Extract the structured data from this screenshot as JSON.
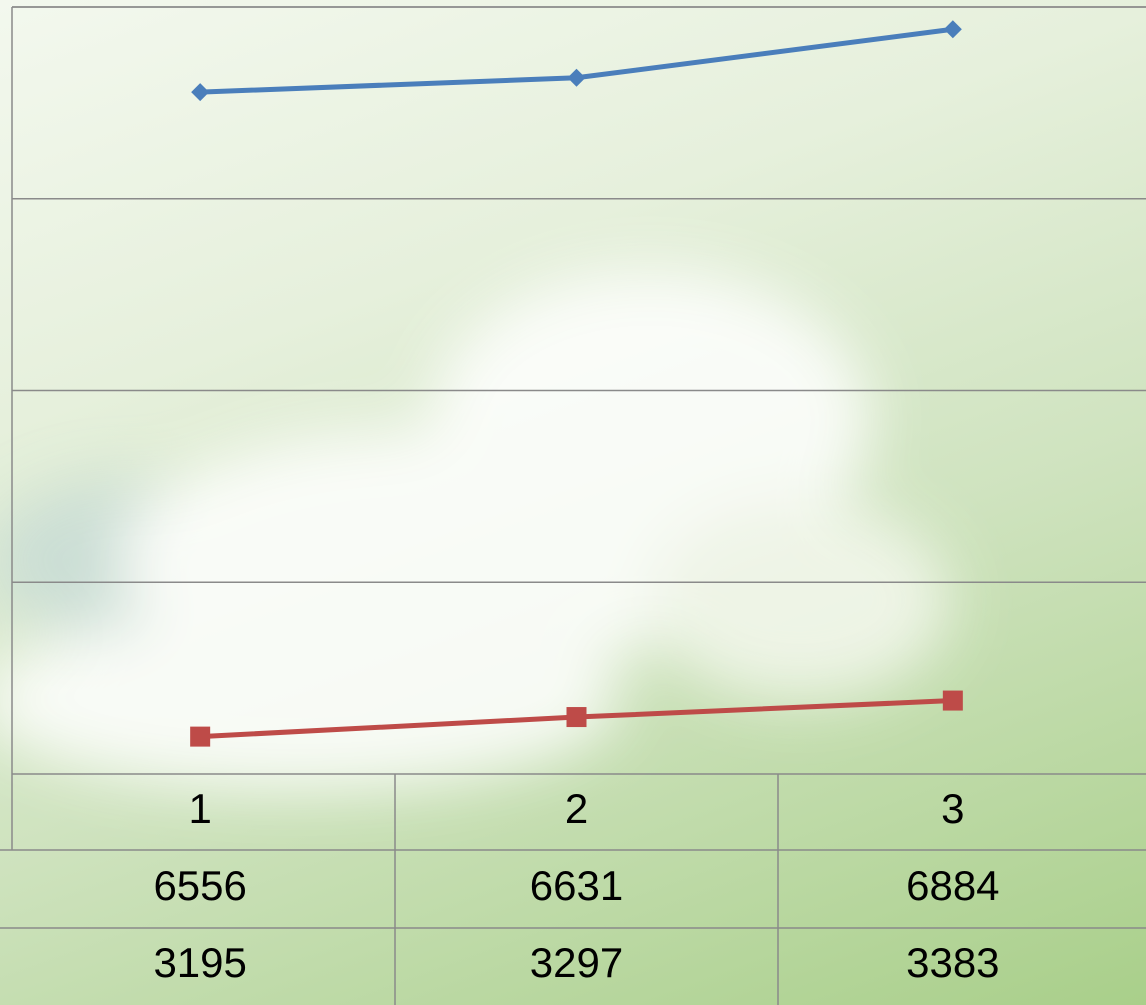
{
  "chart_data": {
    "type": "line",
    "categories": [
      "1",
      "2",
      "3"
    ],
    "series": [
      {
        "color": "#4a7ebb",
        "marker": "diamond",
        "values": [
          6556,
          6631,
          6884
        ]
      },
      {
        "color": "#be4b48",
        "marker": "square",
        "values": [
          3195,
          3297,
          3383
        ]
      }
    ],
    "ylim": [
      3000,
      7000
    ],
    "yticks": [
      3000,
      4000,
      5000,
      6000,
      7000
    ],
    "grid": true
  }
}
